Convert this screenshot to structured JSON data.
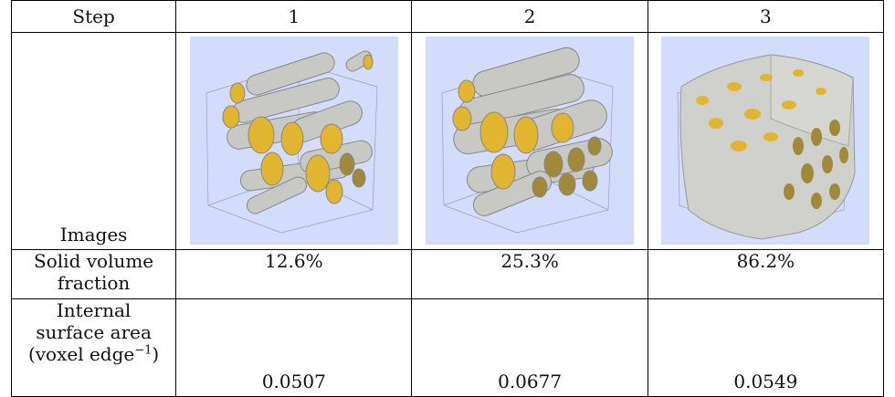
{
  "table": {
    "header": {
      "label": "Step",
      "steps": [
        "1",
        "2",
        "3"
      ]
    },
    "images_row": {
      "label": "Images",
      "renders": [
        {
          "description_icon": "fiber-render-icon",
          "solid_fraction": 0.126
        },
        {
          "description_icon": "fiber-render-icon",
          "solid_fraction": 0.253
        },
        {
          "description_icon": "fiber-render-icon",
          "solid_fraction": 0.862
        }
      ],
      "colors": {
        "background": "#d4dcfb",
        "fiber": "#c8c8c4",
        "cut_face": "#e2b530",
        "cut_face_dark": "#a08a3a",
        "box_edge": "#9a8aa0"
      }
    },
    "solid_volume_row": {
      "label_line1": "Solid volume",
      "label_line2": "fraction",
      "values": [
        "12.6%",
        "25.3%",
        "86.2%"
      ]
    },
    "surface_area_row": {
      "label_line1": "Internal",
      "label_line2": "surface area",
      "label_line3_prefix": "(voxel edge",
      "label_line3_sup": "−1",
      "label_line3_suffix": ")",
      "values": [
        "0.0507",
        "0.0677",
        "0.0549"
      ]
    }
  }
}
